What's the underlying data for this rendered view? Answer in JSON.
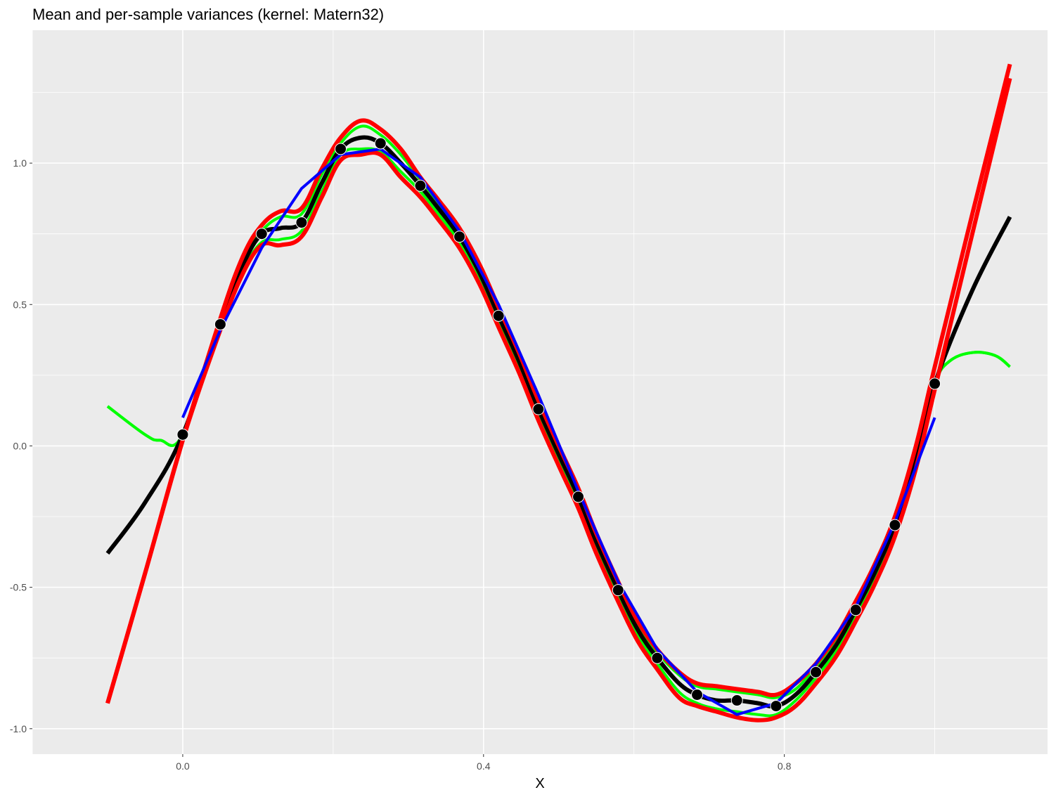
{
  "chart_data": {
    "type": "line",
    "title": "Mean and per-sample variances (kernel: Matern32)",
    "xlabel": "X",
    "ylabel": "",
    "xlim": [
      -0.2,
      1.15
    ],
    "ylim": [
      -1.09,
      1.47
    ],
    "x_ticks": [
      0.0,
      0.4,
      0.8
    ],
    "x_tick_labels": [
      "0.0",
      "0.4",
      "0.8"
    ],
    "y_ticks": [
      -1.0,
      -0.5,
      0.0,
      0.5,
      1.0
    ],
    "y_tick_labels": [
      "-1.0",
      "-0.5",
      "0.0",
      "0.5",
      "1.0"
    ],
    "grid": true,
    "legend": "none",
    "colors": {
      "panel": "#EBEBEB",
      "grid": "#FFFFFF",
      "mean": "#000000",
      "green_band": "#00FF00",
      "red_band": "#FF0000",
      "blue_line": "#0000FF",
      "points": "#000000"
    },
    "points": {
      "x": [
        0.0,
        0.05,
        0.105,
        0.158,
        0.21,
        0.263,
        0.316,
        0.368,
        0.42,
        0.473,
        0.526,
        0.579,
        0.631,
        0.684,
        0.737,
        0.789,
        0.842,
        0.895,
        0.947,
        1.0
      ],
      "y": [
        0.04,
        0.43,
        0.75,
        0.79,
        1.05,
        1.07,
        0.92,
        0.74,
        0.46,
        0.13,
        -0.18,
        -0.51,
        -0.75,
        -0.88,
        -0.9,
        -0.92,
        -0.8,
        -0.58,
        -0.28,
        0.22
      ]
    },
    "series": [
      {
        "x": [
          -0.1,
          -0.05,
          0.0,
          0.05,
          0.08,
          0.105,
          0.13,
          0.158,
          0.185,
          0.21,
          0.237,
          0.263,
          0.29,
          0.316,
          0.34,
          0.368,
          0.395,
          0.42,
          0.447,
          0.473,
          0.5,
          0.526,
          0.55,
          0.579,
          0.605,
          0.631,
          0.66,
          0.684,
          0.71,
          0.737,
          0.765,
          0.789,
          0.815,
          0.842,
          0.87,
          0.895,
          0.92,
          0.947,
          0.975,
          1.0,
          1.05,
          1.1
        ],
        "y": [
          -0.38,
          -0.2,
          0.04,
          0.43,
          0.64,
          0.75,
          0.77,
          0.79,
          0.93,
          1.05,
          1.09,
          1.07,
          1.0,
          0.92,
          0.84,
          0.74,
          0.61,
          0.46,
          0.3,
          0.13,
          -0.03,
          -0.18,
          -0.34,
          -0.51,
          -0.65,
          -0.75,
          -0.84,
          -0.88,
          -0.9,
          -0.9,
          -0.91,
          -0.92,
          -0.88,
          -0.8,
          -0.7,
          -0.58,
          -0.45,
          -0.28,
          -0.04,
          0.22,
          0.55,
          0.81
        ]
      },
      {
        "x": [
          -0.1,
          -0.05,
          -0.03,
          0.0,
          0.05,
          0.08,
          0.105,
          0.13,
          0.158,
          0.185,
          0.21,
          0.237,
          0.263,
          0.29,
          0.316,
          0.34,
          0.368,
          0.395,
          0.42,
          0.447,
          0.473,
          0.5,
          0.526,
          0.55,
          0.579,
          0.605,
          0.631,
          0.66,
          0.684,
          0.71,
          0.737,
          0.765,
          0.789,
          0.815,
          0.842,
          0.87,
          0.895,
          0.92,
          0.947,
          0.975,
          1.0,
          1.02,
          1.05,
          1.08,
          1.1
        ],
        "y": [
          0.14,
          0.04,
          0.02,
          0.04,
          0.43,
          0.66,
          0.76,
          0.81,
          0.82,
          0.96,
          1.07,
          1.13,
          1.1,
          1.03,
          0.94,
          0.86,
          0.76,
          0.63,
          0.48,
          0.32,
          0.15,
          -0.01,
          -0.16,
          -0.32,
          -0.49,
          -0.63,
          -0.73,
          -0.81,
          -0.85,
          -0.86,
          -0.87,
          -0.88,
          -0.89,
          -0.86,
          -0.78,
          -0.68,
          -0.56,
          -0.43,
          -0.26,
          -0.02,
          0.22,
          0.3,
          0.33,
          0.32,
          0.28
        ]
      },
      {
        "x": [
          -0.1,
          -0.05,
          -0.03,
          0.0,
          0.05,
          0.08,
          0.105,
          0.13,
          0.158,
          0.185,
          0.21,
          0.237,
          0.263,
          0.29,
          0.316,
          0.34,
          0.368,
          0.395,
          0.42,
          0.447,
          0.473,
          0.5,
          0.526,
          0.55,
          0.579,
          0.605,
          0.631,
          0.66,
          0.684,
          0.71,
          0.737,
          0.765,
          0.789,
          0.815,
          0.842,
          0.87,
          0.895,
          0.92,
          0.947,
          0.975,
          1.0,
          1.02,
          1.05,
          1.08,
          1.1
        ],
        "y": [
          0.14,
          0.04,
          0.02,
          0.04,
          0.43,
          0.62,
          0.72,
          0.73,
          0.76,
          0.9,
          1.03,
          1.05,
          1.04,
          0.97,
          0.9,
          0.82,
          0.72,
          0.59,
          0.44,
          0.28,
          0.11,
          -0.05,
          -0.2,
          -0.36,
          -0.53,
          -0.67,
          -0.77,
          -0.87,
          -0.91,
          -0.93,
          -0.94,
          -0.95,
          -0.95,
          -0.9,
          -0.82,
          -0.72,
          -0.6,
          -0.47,
          -0.3,
          -0.06,
          0.22,
          0.3,
          0.33,
          0.32,
          0.28
        ]
      },
      {
        "x": [
          -0.1,
          -0.05,
          0.0,
          0.05,
          0.08,
          0.105,
          0.13,
          0.158,
          0.185,
          0.21,
          0.237,
          0.263,
          0.29,
          0.316,
          0.34,
          0.368,
          0.395,
          0.42,
          0.447,
          0.473,
          0.5,
          0.526,
          0.55,
          0.579,
          0.605,
          0.631,
          0.66,
          0.684,
          0.71,
          0.737,
          0.765,
          0.789,
          0.815,
          0.842,
          0.87,
          0.895,
          0.92,
          0.947,
          0.975,
          1.0,
          1.05,
          1.1
        ],
        "y": [
          -0.91,
          -0.45,
          0.02,
          0.45,
          0.67,
          0.78,
          0.83,
          0.84,
          0.98,
          1.09,
          1.15,
          1.12,
          1.05,
          0.95,
          0.87,
          0.77,
          0.64,
          0.49,
          0.33,
          0.16,
          0.0,
          -0.15,
          -0.31,
          -0.48,
          -0.62,
          -0.72,
          -0.8,
          -0.84,
          -0.85,
          -0.86,
          -0.87,
          -0.88,
          -0.84,
          -0.77,
          -0.67,
          -0.55,
          -0.42,
          -0.25,
          0.0,
          0.28,
          0.82,
          1.35
        ]
      },
      {
        "x": [
          -0.1,
          -0.05,
          0.0,
          0.05,
          0.08,
          0.105,
          0.13,
          0.158,
          0.185,
          0.21,
          0.237,
          0.263,
          0.29,
          0.316,
          0.34,
          0.368,
          0.395,
          0.42,
          0.447,
          0.473,
          0.5,
          0.526,
          0.55,
          0.579,
          0.605,
          0.631,
          0.66,
          0.684,
          0.71,
          0.737,
          0.765,
          0.789,
          0.815,
          0.842,
          0.87,
          0.895,
          0.92,
          0.947,
          0.975,
          1.0,
          1.05,
          1.1
        ],
        "y": [
          -0.91,
          -0.45,
          0.02,
          0.41,
          0.61,
          0.71,
          0.71,
          0.74,
          0.88,
          1.01,
          1.03,
          1.03,
          0.95,
          0.88,
          0.8,
          0.7,
          0.57,
          0.42,
          0.26,
          0.09,
          -0.07,
          -0.22,
          -0.38,
          -0.55,
          -0.69,
          -0.79,
          -0.89,
          -0.92,
          -0.94,
          -0.96,
          -0.97,
          -0.96,
          -0.92,
          -0.84,
          -0.74,
          -0.62,
          -0.49,
          -0.32,
          -0.08,
          0.2,
          0.75,
          1.3
        ]
      },
      {
        "x": [
          0.0,
          0.05,
          0.105,
          0.158,
          0.21,
          0.263,
          0.316,
          0.368,
          0.42,
          0.473,
          0.526,
          0.579,
          0.631,
          0.684,
          0.737,
          0.789,
          0.842,
          0.895,
          0.947,
          1.0
        ],
        "y": [
          0.1,
          0.41,
          0.7,
          0.91,
          1.03,
          1.05,
          0.95,
          0.76,
          0.5,
          0.18,
          -0.16,
          -0.48,
          -0.72,
          -0.87,
          -0.95,
          -0.91,
          -0.77,
          -0.57,
          -0.27,
          0.1
        ]
      }
    ]
  }
}
